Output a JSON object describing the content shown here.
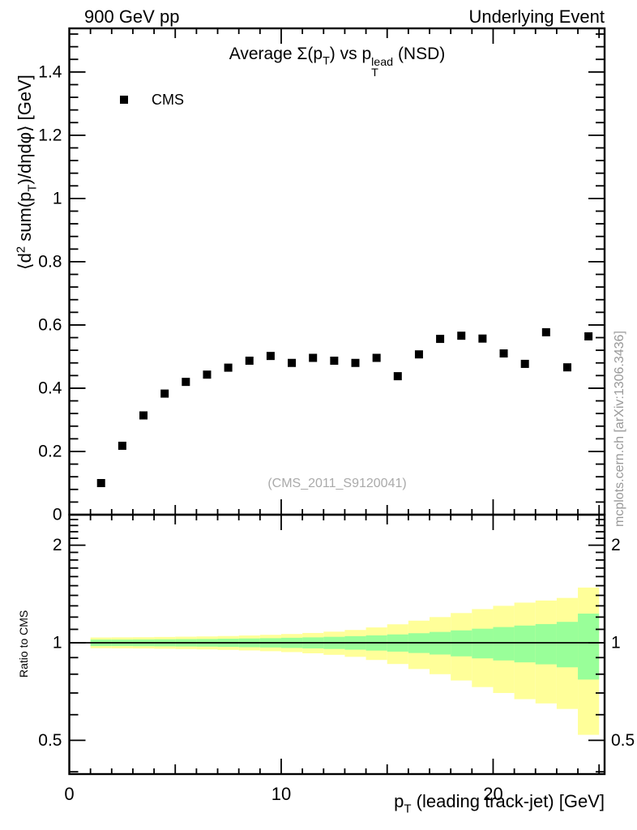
{
  "header": {
    "left": "900 GeV pp",
    "right": "Underlying Event"
  },
  "title_parts": {
    "p1": "Average ",
    "sigma": "Σ",
    "p2": "(p",
    "sub1": "T",
    "p3": ") vs p",
    "sup2": "lead",
    "sub2": "T",
    "p4": " (NSD)"
  },
  "legend": {
    "items": [
      {
        "label": "CMS",
        "marker": "black-filled-square",
        "color": "#000000"
      }
    ]
  },
  "watermark": "(CMS_2011_S9120041)",
  "attribution": "mcplots.cern.ch [arXiv:1306.3436]",
  "axis_titles": {
    "y_parts": {
      "p1": "⟨d",
      "sup": "2",
      "p2": " sum(p",
      "sub": "T",
      "p3": ")/dηdφ⟩ [GeV]"
    },
    "x_parts": {
      "p1": "p",
      "sub": "T",
      "p2": " (leading track-jet) [GeV]"
    },
    "ratio_y": "Ratio to CMS"
  },
  "chart_data": {
    "type": "scatter",
    "title": "Average Σ(p_T) vs p_T^lead (NSD)",
    "xlabel": "p_T (leading track-jet) [GeV]",
    "ylabel": "⟨d^2 sum(p_T)/dηdφ⟩ [GeV]",
    "xlim": [
      0,
      25.26
    ],
    "xticks": {
      "major": [
        0,
        10,
        20
      ],
      "medium_step": 5,
      "minor_step": 1,
      "labels": [
        "0",
        "10",
        "20"
      ]
    },
    "top_panel": {
      "ylim": [
        0,
        1.538
      ],
      "yticks": [
        0,
        0.2,
        0.4,
        0.6,
        0.8,
        1,
        1.2,
        1.4
      ],
      "ytick_labels": [
        "0",
        "0.2",
        "0.4",
        "0.6",
        "0.8",
        "1",
        "1.2",
        "1.4"
      ],
      "y_minor_step": 0.04,
      "grid": false
    },
    "series": [
      {
        "name": "CMS",
        "marker": "filled-square",
        "color": "#000000",
        "x": [
          1.5,
          2.5,
          3.5,
          4.5,
          5.5,
          6.5,
          7.5,
          8.5,
          9.5,
          10.5,
          11.5,
          12.5,
          13.5,
          14.5,
          15.5,
          16.5,
          17.5,
          18.5,
          19.5,
          20.5,
          21.5,
          22.5,
          23.5,
          24.5
        ],
        "y": [
          0.1,
          0.218,
          0.314,
          0.383,
          0.42,
          0.443,
          0.465,
          0.487,
          0.502,
          0.48,
          0.496,
          0.487,
          0.48,
          0.496,
          0.438,
          0.507,
          0.556,
          0.566,
          0.557,
          0.51,
          0.477,
          0.577,
          0.466,
          0.564
        ]
      }
    ],
    "ratio_panel": {
      "ylabel": "Ratio to CMS",
      "yscale": "log",
      "ylim": [
        0.393,
        2.48
      ],
      "yticks": [
        0.5,
        1,
        2
      ],
      "ytick_labels": [
        "0.5",
        "1",
        "2"
      ],
      "y_minor_ticks": [
        0.4,
        0.6,
        0.7,
        0.8,
        0.9,
        1.1,
        1.2,
        1.3,
        1.4,
        1.5,
        1.6,
        1.7,
        1.8,
        1.9,
        2.1,
        2.2,
        2.3,
        2.4
      ],
      "reference_line": 1,
      "band_bin_edges": [
        1,
        2,
        3,
        4,
        5,
        6,
        7,
        8,
        9,
        10,
        11,
        12,
        13,
        14,
        15,
        16,
        17,
        18,
        19,
        20,
        21,
        22,
        23,
        24,
        25
      ],
      "total_uncertainty": [
        0.038,
        0.039,
        0.04,
        0.042,
        0.044,
        0.046,
        0.049,
        0.053,
        0.058,
        0.064,
        0.072,
        0.082,
        0.095,
        0.115,
        0.14,
        0.17,
        0.2,
        0.235,
        0.27,
        0.3,
        0.33,
        0.35,
        0.375,
        0.48
      ],
      "stat_uncertainty": [
        0.023,
        0.023,
        0.024,
        0.025,
        0.026,
        0.027,
        0.029,
        0.031,
        0.033,
        0.036,
        0.039,
        0.043,
        0.048,
        0.054,
        0.061,
        0.07,
        0.08,
        0.092,
        0.105,
        0.118,
        0.13,
        0.142,
        0.16,
        0.23
      ],
      "colors": {
        "total": "#ffff99",
        "stat": "#99ff99"
      }
    }
  }
}
